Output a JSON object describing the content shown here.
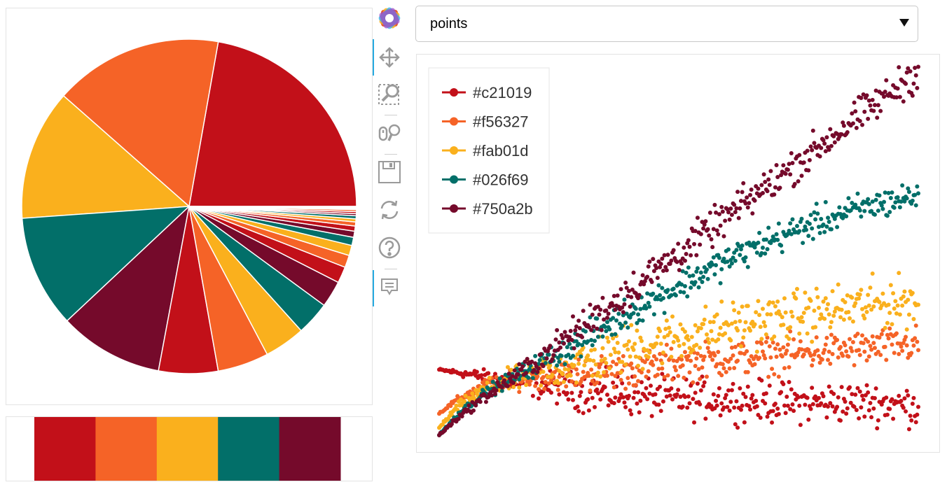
{
  "palette": [
    "#c21019",
    "#f56327",
    "#fab01d",
    "#026f69",
    "#750a2b"
  ],
  "select": {
    "value": "points",
    "options": [
      "points"
    ]
  },
  "toolbar": {
    "tools": [
      {
        "name": "bokeh-logo-icon"
      },
      {
        "name": "pan-icon",
        "active": true
      },
      {
        "name": "box-zoom-icon"
      },
      {
        "name": "wheel-zoom-icon"
      },
      {
        "name": "save-icon"
      },
      {
        "name": "reset-icon"
      },
      {
        "name": "help-icon"
      },
      {
        "name": "hover-icon",
        "active": true
      }
    ]
  },
  "chart_data": [
    {
      "type": "pie",
      "slices": [
        {
          "color": "#c21019",
          "value": 22.5
        },
        {
          "color": "#f56327",
          "value": 16.5
        },
        {
          "color": "#fab01d",
          "value": 12.8
        },
        {
          "color": "#026f69",
          "value": 11.0
        },
        {
          "color": "#750a2b",
          "value": 10.2
        },
        {
          "color": "#c21019",
          "value": 5.8
        },
        {
          "color": "#f56327",
          "value": 5.0
        },
        {
          "color": "#fab01d",
          "value": 4.0
        },
        {
          "color": "#026f69",
          "value": 3.3
        },
        {
          "color": "#750a2b",
          "value": 2.6
        },
        {
          "color": "#c21019",
          "value": 1.6
        },
        {
          "color": "#f56327",
          "value": 1.2
        },
        {
          "color": "#fab01d",
          "value": 1.0
        },
        {
          "color": "#026f69",
          "value": 0.8
        },
        {
          "color": "#750a2b",
          "value": 0.6
        },
        {
          "color": "#c21019",
          "value": 0.5
        },
        {
          "color": "#f56327",
          "value": 0.4
        },
        {
          "color": "#fab01d",
          "value": 0.3
        },
        {
          "color": "#026f69",
          "value": 0.3
        },
        {
          "color": "#750a2b",
          "value": 0.2
        },
        {
          "color": "#c21019",
          "value": 0.2
        },
        {
          "color": "#f56327",
          "value": 0.2
        },
        {
          "color": "#fab01d",
          "value": 0.1
        },
        {
          "color": "#026f69",
          "value": 0.1
        },
        {
          "color": "#750a2b",
          "value": 0.1
        }
      ]
    },
    {
      "type": "heatmap",
      "cells": [
        "#c21019",
        "#f56327",
        "#fab01d",
        "#026f69",
        "#750a2b"
      ]
    },
    {
      "type": "scatter",
      "xlim": [
        0,
        10
      ],
      "ylim": [
        0,
        10
      ],
      "legend_position": "top-left",
      "grid": false,
      "series": [
        {
          "name": "#c21019",
          "color": "#c21019",
          "trend": [
            [
              0,
              1.8
            ],
            [
              1,
              1.6
            ],
            [
              2,
              1.4
            ],
            [
              3,
              1.2
            ],
            [
              4,
              1.1
            ],
            [
              5,
              1.0
            ],
            [
              6,
              1.0
            ],
            [
              7,
              0.9
            ],
            [
              8,
              0.9
            ],
            [
              9,
              0.9
            ],
            [
              10,
              0.8
            ]
          ],
          "spread": 0.45
        },
        {
          "name": "#f56327",
          "color": "#f56327",
          "trend": [
            [
              0,
              0.6
            ],
            [
              0.4,
              1.0
            ],
            [
              1,
              1.4
            ],
            [
              2,
              1.6
            ],
            [
              3,
              1.7
            ],
            [
              4,
              1.8
            ],
            [
              5,
              2.0
            ],
            [
              6,
              2.1
            ],
            [
              7,
              2.2
            ],
            [
              8,
              2.3
            ],
            [
              9,
              2.4
            ],
            [
              10,
              2.5
            ]
          ],
          "spread": 0.4
        },
        {
          "name": "#fab01d",
          "color": "#fab01d",
          "trend": [
            [
              0,
              0.2
            ],
            [
              0.4,
              0.8
            ],
            [
              1,
              1.3
            ],
            [
              2,
              1.7
            ],
            [
              3,
              2.0
            ],
            [
              4,
              2.4
            ],
            [
              5,
              2.7
            ],
            [
              6,
              3.0
            ],
            [
              7,
              3.2
            ],
            [
              8,
              3.4
            ],
            [
              9,
              3.6
            ],
            [
              10,
              3.7
            ]
          ],
          "spread": 0.55
        },
        {
          "name": "#026f69",
          "color": "#026f69",
          "trend": [
            [
              0,
              0
            ],
            [
              0.4,
              0.6
            ],
            [
              1,
              1.2
            ],
            [
              2,
              1.9
            ],
            [
              3,
              2.6
            ],
            [
              4,
              3.4
            ],
            [
              5,
              4.1
            ],
            [
              6,
              4.8
            ],
            [
              7,
              5.4
            ],
            [
              8,
              5.9
            ],
            [
              9,
              6.3
            ],
            [
              10,
              6.6
            ]
          ],
          "spread": 0.35
        },
        {
          "name": "#750a2b",
          "color": "#750a2b",
          "trend": [
            [
              0,
              0
            ],
            [
              0.4,
              0.5
            ],
            [
              1,
              1.1
            ],
            [
              2,
              2.0
            ],
            [
              3,
              3.0
            ],
            [
              4,
              4.0
            ],
            [
              5,
              5.0
            ],
            [
              6,
              6.0
            ],
            [
              7,
              7.0
            ],
            [
              8,
              8.0
            ],
            [
              9,
              9.0
            ],
            [
              10,
              10.0
            ]
          ],
          "spread": 0.4
        }
      ]
    }
  ]
}
